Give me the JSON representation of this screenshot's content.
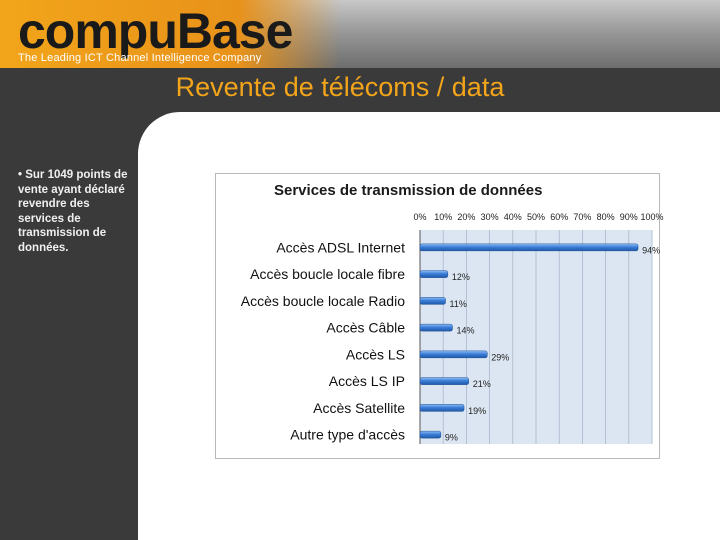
{
  "header": {
    "logo_text": "compuBase",
    "tagline": "The Leading ICT Channel Intelligence Company"
  },
  "slide": {
    "title": "Revente de télécoms / data",
    "bullet": "• Sur 1049 points de vente ayant déclaré revendre des services de transmission de données."
  },
  "colors": {
    "accent": "#f2a51a",
    "bar": "#3b7dd8",
    "plot_bg": "#dce6f2"
  },
  "chart_data": {
    "type": "bar",
    "orientation": "horizontal",
    "title": "Services de transmission  de données",
    "categories": [
      "Accès ADSL Internet",
      "Accès boucle locale fibre",
      "Accès boucle locale Radio",
      "Accès Câble",
      "Accès LS",
      "Accès LS IP",
      "Accès Satellite",
      "Autre type d'accès"
    ],
    "values": [
      94,
      12,
      11,
      14,
      29,
      21,
      19,
      9
    ],
    "value_labels": [
      "94%",
      "12%",
      "11%",
      "14%",
      "29%",
      "21%",
      "19%",
      "9%"
    ],
    "x_ticks": [
      "0%",
      "10%",
      "20%",
      "30%",
      "40%",
      "50%",
      "60%",
      "70%",
      "80%",
      "90%",
      "100%"
    ],
    "xlim": [
      0,
      100
    ],
    "x_axis_position": "top",
    "grid": true
  }
}
